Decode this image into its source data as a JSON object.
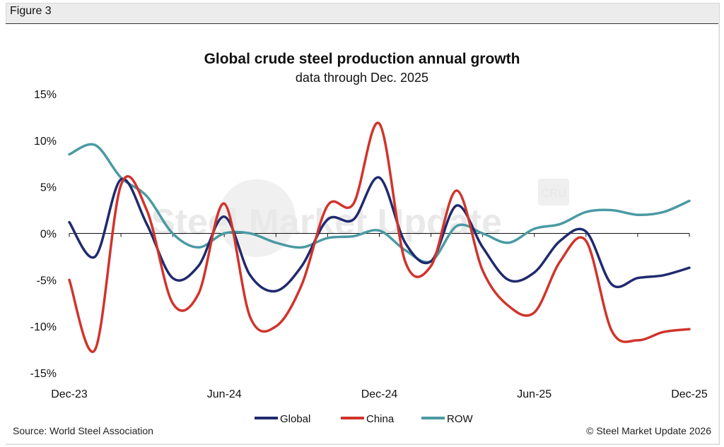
{
  "figure_label": "Figure 3",
  "source": "Source: World Steel Association",
  "copyright": "© Steel Market Update 2026",
  "watermark_text": "Steel Market Update",
  "watermark_logo": "CRU",
  "colors": {
    "Global": "#1f2a6e",
    "China": "#d0342c",
    "ROW": "#4a9aa3"
  },
  "chart_data": {
    "type": "line",
    "title": "Global crude steel production annual growth",
    "subtitle": "data through Dec. 2025",
    "xlabel": "",
    "ylabel": "",
    "x": [
      "Dec-23",
      "Jan-24",
      "Feb-24",
      "Mar-24",
      "Apr-24",
      "May-24",
      "Jun-24",
      "Jul-24",
      "Aug-24",
      "Sep-24",
      "Oct-24",
      "Nov-24",
      "Dec-24",
      "Jan-25",
      "Feb-25",
      "Mar-25",
      "Apr-25",
      "May-25",
      "Jun-25",
      "Jul-25",
      "Aug-25",
      "Sep-25",
      "Oct-25",
      "Nov-25",
      "Dec-25"
    ],
    "x_tick_labels": [
      "Dec-23",
      "Jun-24",
      "Dec-24",
      "Jun-25",
      "Dec-25"
    ],
    "y_tick_labels": [
      "15%",
      "10%",
      "5%",
      "0%",
      "-5%",
      "-10%",
      "-15%"
    ],
    "ylim": [
      -15,
      15
    ],
    "y_ticks": [
      15,
      10,
      5,
      0,
      -5,
      -10,
      -15
    ],
    "legend_position": "bottom-center",
    "series": [
      {
        "name": "Global",
        "values": [
          1.2,
          -2.5,
          5.8,
          1.0,
          -4.8,
          -3.5,
          1.8,
          -4.5,
          -6.2,
          -3.5,
          1.5,
          1.5,
          6.0,
          -1.0,
          -3.0,
          3.0,
          -1.5,
          -5.0,
          -4.2,
          -0.8,
          0.2,
          -5.5,
          -4.8,
          -4.5,
          -3.7
        ]
      },
      {
        "name": "China",
        "values": [
          -5.0,
          -12.5,
          5.2,
          2.5,
          -7.5,
          -6.5,
          3.2,
          -9.0,
          -10.0,
          -5.5,
          3.0,
          3.2,
          11.8,
          -3.0,
          -3.5,
          4.6,
          -4.0,
          -7.8,
          -8.5,
          -3.0,
          -0.8,
          -10.5,
          -11.5,
          -10.6,
          -10.3
        ]
      },
      {
        "name": "ROW",
        "values": [
          8.5,
          9.5,
          6.0,
          4.0,
          0.0,
          -1.5,
          0.0,
          0.0,
          -1.0,
          -1.5,
          -0.5,
          -0.3,
          0.3,
          -1.8,
          -3.0,
          0.8,
          0.0,
          -1.0,
          0.5,
          1.0,
          2.3,
          2.5,
          2.0,
          2.3,
          3.5
        ]
      }
    ]
  }
}
